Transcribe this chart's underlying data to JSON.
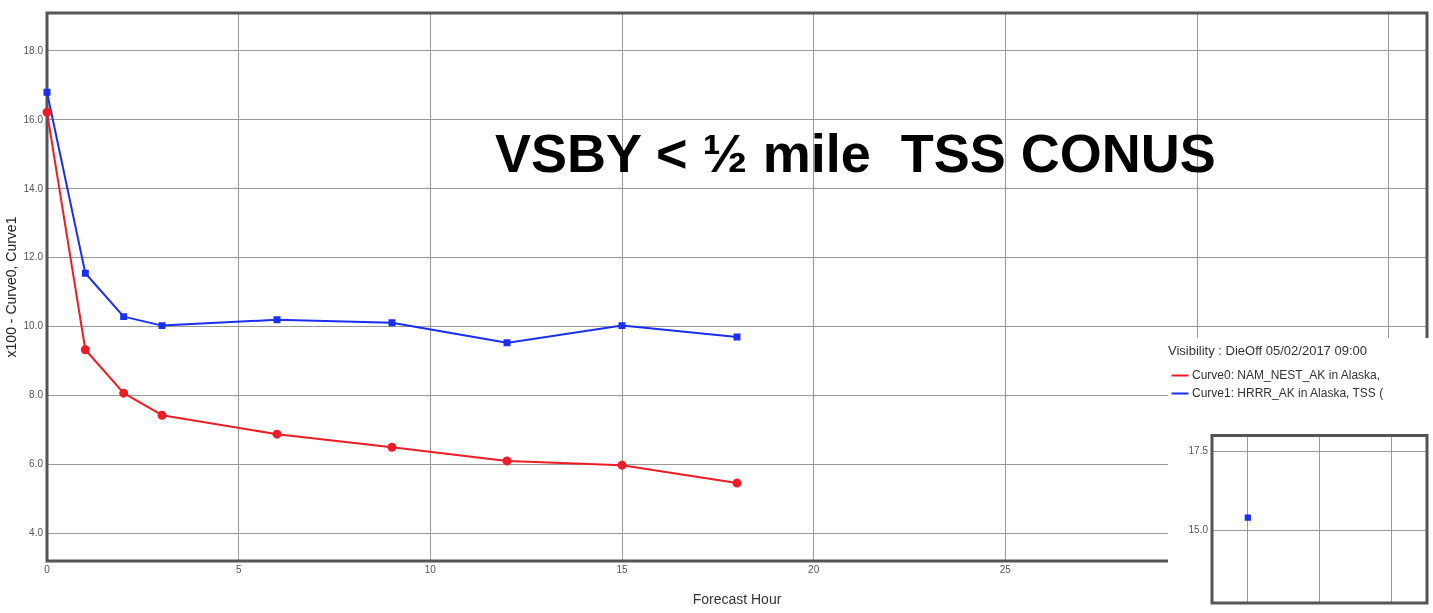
{
  "chart_data": [
    {
      "type": "line",
      "title": "VSBY < ½ mile  TSS CONUS",
      "xlabel": "Forecast Hour",
      "ylabel": "x100 - Curve0, Curve1",
      "x": [
        0,
        1,
        2,
        3,
        6,
        9,
        12,
        15,
        18
      ],
      "series": [
        {
          "color": "#ee1c24",
          "marker": "circle",
          "values": [
            16.22,
            9.33,
            8.07,
            7.43,
            6.88,
            6.5,
            6.1,
            5.98,
            5.46
          ]
        },
        {
          "color": "#1a2ff0",
          "marker": "square",
          "values": [
            16.8,
            11.55,
            10.29,
            10.03,
            10.2,
            10.11,
            9.53,
            10.03,
            9.7
          ]
        }
      ],
      "xlim": [
        0,
        36
      ],
      "xticks": [
        0,
        5,
        10,
        15,
        20,
        25,
        {
          "value": 30,
          "label": null
        },
        {
          "value": 35,
          "label": null
        }
      ],
      "ylim": [
        3.2,
        19.1
      ],
      "yticks": [
        {
          "value": 4,
          "label": "4.0"
        },
        {
          "value": 6,
          "label": "6.0"
        },
        {
          "value": 8,
          "label": "8.0"
        },
        {
          "value": 10,
          "label": "10.0"
        },
        {
          "value": 12,
          "label": "12.0"
        },
        {
          "value": 14,
          "label": "14.0"
        },
        {
          "value": 16,
          "label": "16.0"
        },
        {
          "value": 18,
          "label": "18.0"
        }
      ],
      "grid": true,
      "legend": false
    },
    {
      "type": "line",
      "title": "Visibility : DieOff 05/02/2017 09:00",
      "categories": [
        null,
        null,
        null
      ],
      "series": [
        {
          "name": "Curve0: NAM_NEST_AK in Alaska,",
          "color": "#ee1c24",
          "marker": "circle",
          "values": [
            null,
            null,
            null
          ]
        },
        {
          "name": "Curve1: HRRR_AK in Alaska, TSS (",
          "color": "#1a2ff0",
          "marker": "square",
          "values": [
            15.4,
            null,
            null
          ]
        }
      ],
      "ylim": [
        12.7,
        18
      ],
      "yticks": [
        {
          "value": 15,
          "label": "15.0"
        },
        {
          "value": 17.5,
          "label": "17.5"
        }
      ],
      "grid": true,
      "legend": "top left",
      "tick_labels": "y"
    }
  ]
}
